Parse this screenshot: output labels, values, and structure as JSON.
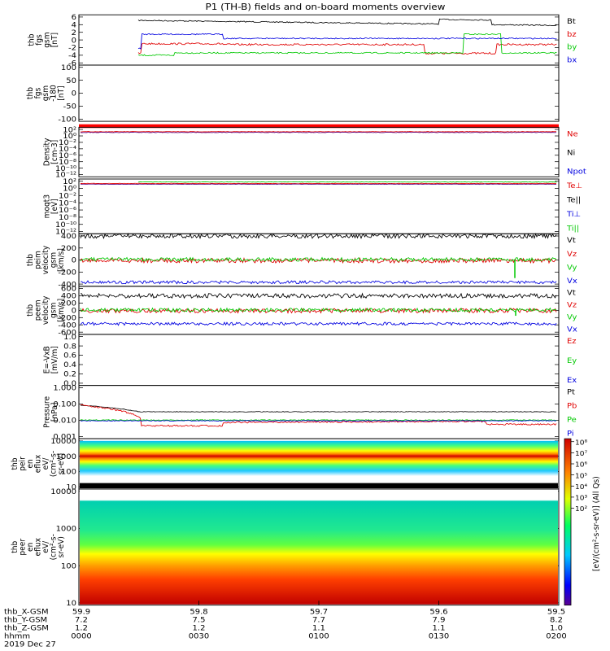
{
  "title": "P1 (TH-B) fields and on-board moments overview",
  "colors": {
    "black": "#000000",
    "red": "#e00000",
    "green": "#00c800",
    "blue": "#0000e0",
    "purple": "#5a0080"
  },
  "panels": [
    {
      "id": "fgs_gsm",
      "ylabel": [
        "thb",
        "fgs",
        "gsm",
        "[nT]"
      ],
      "ticks": [
        "6",
        "4",
        "2",
        "0",
        "-2",
        "-4",
        "-6"
      ],
      "legend": [
        {
          "text": "Bt",
          "color": "black"
        },
        {
          "text": "bz",
          "color": "red"
        },
        {
          "text": "by",
          "color": "green"
        },
        {
          "text": "bx",
          "color": "blue"
        }
      ]
    },
    {
      "id": "fgs_gsm_range",
      "ylabel": [
        "thb",
        "fgs",
        "gsm",
        "-180",
        "[nT]"
      ],
      "ticks": [
        "100",
        "50",
        "0",
        "-50",
        "-100"
      ],
      "legend": []
    },
    {
      "id": "density",
      "ylabel": [
        "Density",
        "[cm-3]"
      ],
      "ticks": [
        "10²",
        "10⁰",
        "10⁻²",
        "10⁻⁴",
        "10⁻⁶",
        "10⁻⁸",
        "10⁻¹⁰",
        "10⁻¹²"
      ],
      "legend": [
        {
          "text": "Ne",
          "color": "red"
        },
        {
          "text": "Ni",
          "color": "black"
        },
        {
          "text": "Npot",
          "color": "blue"
        }
      ]
    },
    {
      "id": "temperature",
      "ylabel": [
        "moqt3",
        "[eV]"
      ],
      "ticks": [
        "10²",
        "10⁰",
        "10⁻²",
        "10⁻⁴",
        "10⁻⁶",
        "10⁻⁸",
        "10⁻¹⁰",
        "10⁻¹²"
      ],
      "legend": [
        {
          "text": "Te⊥",
          "color": "red"
        },
        {
          "text": "Te||",
          "color": "black"
        },
        {
          "text": "Ti⊥",
          "color": "blue"
        },
        {
          "text": "Ti||",
          "color": "green"
        }
      ]
    },
    {
      "id": "peim_velocity",
      "ylabel": [
        "thb",
        "peim",
        "velocity",
        "gsm",
        "[km/s]"
      ],
      "ticks": [
        "400",
        "200",
        "0",
        "-200",
        "-400"
      ],
      "legend": [
        {
          "text": "Vt",
          "color": "black"
        },
        {
          "text": "Vz",
          "color": "red"
        },
        {
          "text": "Vy",
          "color": "green"
        },
        {
          "text": "Vx",
          "color": "blue"
        }
      ]
    },
    {
      "id": "peem_velocity",
      "ylabel": [
        "thb",
        "peem",
        "velocity",
        "gsm",
        "[km/s]"
      ],
      "ticks": [
        "600",
        "400",
        "200",
        "0",
        "-200",
        "-400",
        "-600"
      ],
      "legend": [
        {
          "text": "Vt",
          "color": "black"
        },
        {
          "text": "Vz",
          "color": "red"
        },
        {
          "text": "Vy",
          "color": "green"
        },
        {
          "text": "Vx",
          "color": "blue"
        }
      ]
    },
    {
      "id": "efield",
      "ylabel": [
        "E=-VxB",
        "[mV/m]"
      ],
      "ticks": [
        "1.0",
        "0.8",
        "0.6",
        "0.4",
        "0.2",
        "0.0"
      ],
      "legend": [
        {
          "text": "Ez",
          "color": "red"
        },
        {
          "text": "Ey",
          "color": "green"
        },
        {
          "text": "Ex",
          "color": "blue"
        }
      ]
    },
    {
      "id": "pressure",
      "ylabel": [
        "Pressure",
        "[nPa]"
      ],
      "ticks": [
        "1.000",
        "0.100",
        "0.010",
        "0.001"
      ],
      "legend": [
        {
          "text": "Pt",
          "color": "black"
        },
        {
          "text": "Pb",
          "color": "red"
        },
        {
          "text": "Pe",
          "color": "green"
        },
        {
          "text": "Pi",
          "color": "blue"
        }
      ]
    },
    {
      "id": "peir_eflux",
      "ylabel": [
        "thb",
        "peir",
        "en",
        "eflux",
        "eV/",
        "(cm²-s-",
        "sr-eV)"
      ],
      "ticks": [
        "10000",
        "1000",
        "100",
        "10"
      ],
      "legend": []
    },
    {
      "id": "peer_eflux",
      "ylabel": [
        "thb",
        "peer",
        "en",
        "eflux",
        "eV/",
        "(cm²-s-",
        "sr-eV)"
      ],
      "ticks": [
        "10000",
        "1000",
        "100",
        "10"
      ],
      "legend": []
    }
  ],
  "colorbar": {
    "label": "[eV/(cm²-s-sr-eV)] (All Qs)",
    "ticks": [
      "10⁸",
      "10⁷",
      "10⁶",
      "10⁵",
      "10⁴",
      "10³",
      "10²"
    ]
  },
  "xaxis": {
    "row_labels": [
      "thb_X-GSM",
      "thb_Y-GSM",
      "thb_Z-GSM",
      "hhmm",
      "2019 Dec 27"
    ],
    "x_gsm": [
      "59.9",
      "59.8",
      "59.7",
      "59.6",
      "59.5"
    ],
    "y_gsm": [
      "7.2",
      "7.5",
      "7.7",
      "7.9",
      "8.2"
    ],
    "z_gsm": [
      "1.2",
      "1.2",
      "1.1",
      "1.1",
      "1.0"
    ],
    "hhmm": [
      "0000",
      "0030",
      "0100",
      "0130",
      "0200"
    ]
  },
  "chart_data": {
    "type": "line",
    "x": [
      "0000",
      "0030",
      "0100",
      "0130",
      "0200"
    ],
    "series": [
      {
        "name": "Bt",
        "panel": "fgs_gsm",
        "values": [
          5.5,
          4.0,
          4.2,
          5.8,
          4.0
        ]
      },
      {
        "name": "bz",
        "panel": "fgs_gsm",
        "values": [
          -2.0,
          -1.0,
          -1.0,
          -2.5,
          -3.5
        ]
      },
      {
        "name": "by",
        "panel": "fgs_gsm",
        "values": [
          -4.0,
          -3.0,
          -3.5,
          -3.5,
          -1.5
        ]
      },
      {
        "name": "bx",
        "panel": "fgs_gsm",
        "values": [
          -2.0,
          1.5,
          0.5,
          0.5,
          -0.5
        ]
      },
      {
        "name": "Pt",
        "panel": "pressure",
        "values": [
          0.09,
          0.035,
          0.035,
          0.035,
          0.03
        ]
      },
      {
        "name": "Pb",
        "panel": "pressure",
        "values": [
          0.09,
          0.004,
          0.006,
          0.008,
          0.005
        ]
      },
      {
        "name": "Pe",
        "panel": "pressure",
        "values": [
          0.009,
          0.009,
          0.009,
          0.009,
          0.009
        ]
      },
      {
        "name": "Pi",
        "panel": "pressure",
        "values": [
          0.008,
          0.008,
          0.008,
          0.008,
          0.008
        ]
      }
    ]
  }
}
